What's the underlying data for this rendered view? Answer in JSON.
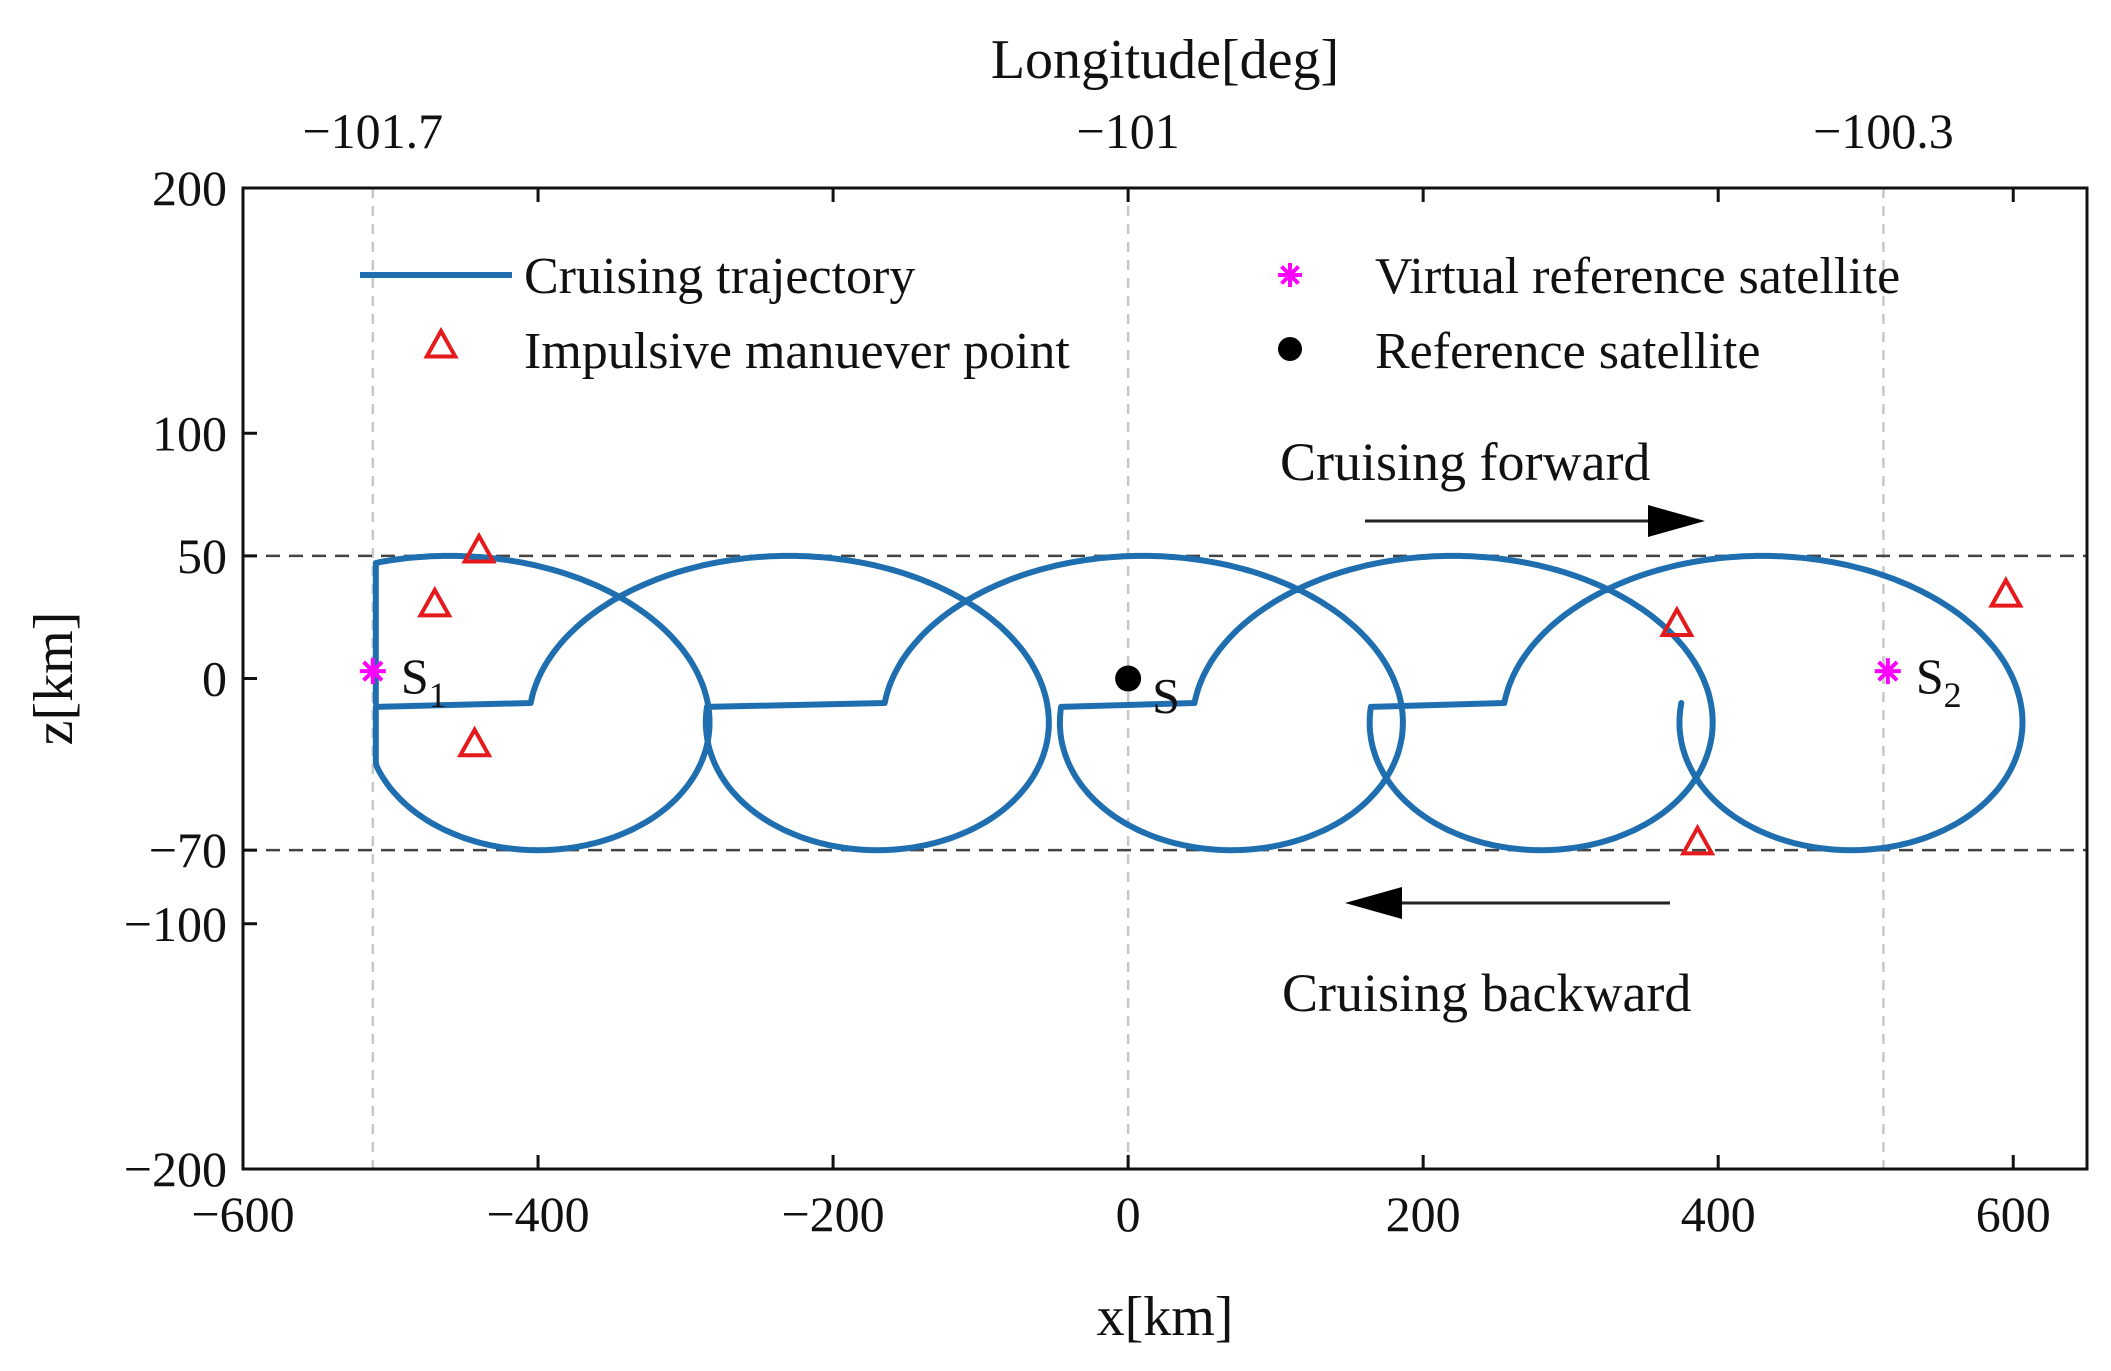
{
  "chart_data": {
    "type": "line",
    "title": "",
    "xlabel": "x[km]",
    "ylabel": "z[km]",
    "top_xlabel": "Longitude[deg]",
    "xlim": [
      -600,
      650
    ],
    "ylim": [
      -200,
      200
    ],
    "x_ticks": [
      -600,
      -400,
      -200,
      0,
      200,
      400,
      600
    ],
    "x_tick_labels": [
      "−600",
      "−400",
      "−200",
      "0",
      "200",
      "400",
      "600"
    ],
    "y_ticks": [
      -200,
      -100,
      -70,
      0,
      50,
      100,
      200
    ],
    "y_tick_labels": [
      "−200",
      "−100",
      "−70",
      "0",
      "50",
      "100",
      "200"
    ],
    "top_ticks_x": [
      -512,
      0,
      512
    ],
    "top_tick_labels": [
      "−101.7",
      "−101",
      "−100.3"
    ],
    "grid": false,
    "vertical_guides_x": [
      -512,
      0,
      512
    ],
    "horizontal_guides_z": [
      50,
      -70
    ],
    "trajectory_x_range": [
      -510,
      620
    ],
    "trajectory_z_range": [
      -70,
      50
    ],
    "maneuver_points": [
      {
        "x": -440,
        "z": 52
      },
      {
        "x": -470,
        "z": 30
      },
      {
        "x": -443,
        "z": -27
      },
      {
        "x": 372,
        "z": 22
      },
      {
        "x": 386,
        "z": -67
      },
      {
        "x": 595,
        "z": 34
      }
    ],
    "virtual_reference_satellites": [
      {
        "x": -512,
        "z": 3,
        "label": "S",
        "subscript": "1"
      },
      {
        "x": 515,
        "z": 3,
        "label": "S",
        "subscript": "2"
      }
    ],
    "reference_satellite": {
      "x": 0,
      "z": 0,
      "label": "S"
    },
    "legend": [
      {
        "label": "Cruising trajectory",
        "marker": "line",
        "color": "#1f6fb0"
      },
      {
        "label": "Impulsive manuever point",
        "marker": "triangle",
        "color": "#e41a1c"
      },
      {
        "label": "Virtual reference satellite",
        "marker": "asterisk",
        "color": "#ff00ff"
      },
      {
        "label": "Reference satellite",
        "marker": "dot",
        "color": "#000000"
      }
    ],
    "annotations": [
      {
        "text": "Cruising forward",
        "direction": "right"
      },
      {
        "text": "Cruising backward",
        "direction": "left"
      }
    ],
    "colors": {
      "trajectory": "#1f6fb0",
      "maneuver": "#e41a1c",
      "virtual": "#ff00ff",
      "reference": "#000000",
      "guide_vertical": "#c8c8c8",
      "guide_horizontal": "#444444"
    }
  }
}
